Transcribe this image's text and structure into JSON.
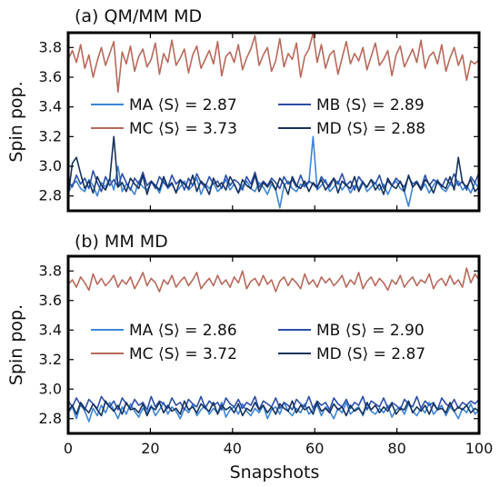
{
  "figure": {
    "xlabel": "Snapshots",
    "ylabel": "Spin pop."
  },
  "colors": {
    "MA": "#3d85d8",
    "MB": "#2c4fa8",
    "MC": "#b8695a",
    "MD": "#16325c"
  },
  "chart_data": [
    {
      "type": "line",
      "title": "(a) QM/MM MD",
      "xlabel": "",
      "ylabel": "Spin pop.",
      "xlim": [
        0,
        100
      ],
      "ylim": [
        2.7,
        3.9
      ],
      "yticks": [
        2.8,
        3.0,
        3.2,
        3.4,
        3.6,
        3.8
      ],
      "xticks": [
        0,
        20,
        40,
        60,
        80,
        100
      ],
      "legend": [
        "MA ⟨S⟩ = 2.87",
        "MB ⟨S⟩ = 2.89",
        "MC ⟨S⟩ = 3.73",
        "MD ⟨S⟩ = 2.88"
      ],
      "legend_placement": "center",
      "series": [
        {
          "name": "MA",
          "mean": 2.87,
          "values": [
            2.82,
            2.88,
            2.9,
            2.85,
            2.83,
            2.91,
            2.87,
            2.8,
            2.89,
            2.86,
            2.92,
            2.84,
            3.0,
            2.83,
            2.88,
            2.85,
            2.81,
            2.9,
            2.86,
            2.84,
            2.89,
            2.87,
            2.82,
            2.91,
            2.85,
            2.88,
            2.83,
            2.86,
            2.9,
            2.84,
            2.87,
            2.92,
            2.81,
            2.88,
            2.85,
            2.89,
            2.83,
            2.86,
            2.91,
            2.84,
            2.88,
            2.82,
            2.87,
            2.9,
            2.85,
            2.83,
            2.89,
            2.86,
            2.81,
            2.88,
            2.84,
            2.72,
            2.87,
            2.9,
            2.85,
            2.83,
            2.88,
            2.86,
            2.89,
            3.2,
            2.84,
            2.87,
            2.91,
            2.83,
            2.86,
            2.9,
            2.84,
            2.88,
            2.82,
            2.87,
            2.85,
            2.9,
            2.83,
            2.86,
            2.89,
            2.84,
            2.88,
            2.81,
            2.87,
            2.9,
            2.85,
            2.83,
            2.73,
            2.86,
            2.89,
            2.84,
            2.88,
            2.82,
            2.87,
            2.91,
            2.85,
            2.83,
            2.88,
            2.86,
            2.9,
            2.84,
            2.87,
            2.82,
            2.89,
            2.85
          ]
        },
        {
          "name": "MB",
          "mean": 2.89,
          "values": [
            2.9,
            2.86,
            2.94,
            2.88,
            2.92,
            2.85,
            2.97,
            2.89,
            2.83,
            2.93,
            2.87,
            2.91,
            2.86,
            2.95,
            2.89,
            2.84,
            2.92,
            2.88,
            2.96,
            2.87,
            2.9,
            2.85,
            2.93,
            2.89,
            2.86,
            2.94,
            2.88,
            2.91,
            2.84,
            2.92,
            2.87,
            2.95,
            2.89,
            2.86,
            2.93,
            2.88,
            2.9,
            2.85,
            2.94,
            2.87,
            2.91,
            2.89,
            2.84,
            2.93,
            2.88,
            2.96,
            2.86,
            2.9,
            2.87,
            2.92,
            2.89,
            2.85,
            2.93,
            2.88,
            2.91,
            2.86,
            2.94,
            2.87,
            2.9,
            2.88,
            2.85,
            2.93,
            2.89,
            2.86,
            2.92,
            2.88,
            2.95,
            2.87,
            2.9,
            2.84,
            2.93,
            2.89,
            2.86,
            2.91,
            2.88,
            2.94,
            2.85,
            2.9,
            2.87,
            2.92,
            2.89,
            2.86,
            2.93,
            2.88,
            2.9,
            2.85,
            2.94,
            2.87,
            2.91,
            2.89,
            2.86,
            2.92,
            2.88,
            2.95,
            2.87,
            2.9,
            2.84,
            2.93,
            2.89,
            2.96
          ]
        },
        {
          "name": "MC",
          "mean": 3.73,
          "values": [
            3.72,
            3.78,
            3.7,
            3.82,
            3.66,
            3.75,
            3.6,
            3.71,
            3.8,
            3.68,
            3.76,
            3.84,
            3.5,
            3.77,
            3.69,
            3.81,
            3.64,
            3.74,
            3.79,
            3.67,
            3.72,
            3.83,
            3.62,
            3.76,
            3.7,
            3.85,
            3.68,
            3.73,
            3.79,
            3.63,
            3.75,
            3.81,
            3.66,
            3.72,
            3.78,
            3.69,
            3.84,
            3.61,
            3.74,
            3.77,
            3.7,
            3.82,
            3.65,
            3.73,
            3.79,
            3.88,
            3.68,
            3.75,
            3.8,
            3.64,
            3.71,
            3.86,
            3.67,
            3.76,
            3.72,
            3.83,
            3.6,
            3.74,
            3.79,
            3.9,
            3.7,
            3.82,
            3.66,
            3.75,
            3.78,
            3.62,
            3.73,
            3.84,
            3.69,
            3.76,
            3.71,
            3.8,
            3.65,
            3.74,
            3.83,
            3.68,
            3.72,
            3.78,
            3.61,
            3.75,
            3.81,
            3.67,
            3.73,
            3.79,
            3.7,
            3.85,
            3.66,
            3.74,
            3.77,
            3.69,
            3.82,
            3.64,
            3.73,
            3.8,
            3.68,
            3.75,
            3.58,
            3.71,
            3.69,
            3.72
          ]
        },
        {
          "name": "MD",
          "mean": 2.88,
          "values": [
            2.8,
            3.02,
            3.06,
            2.95,
            2.85,
            2.9,
            2.82,
            2.93,
            2.87,
            2.84,
            2.91,
            3.2,
            2.86,
            2.89,
            2.83,
            2.92,
            2.88,
            2.85,
            2.94,
            2.81,
            2.9,
            2.87,
            2.84,
            2.93,
            2.86,
            2.89,
            2.82,
            2.91,
            2.88,
            2.85,
            2.94,
            2.83,
            2.9,
            2.87,
            2.81,
            2.92,
            2.86,
            2.89,
            2.84,
            2.93,
            2.88,
            2.82,
            2.91,
            2.87,
            2.85,
            2.94,
            2.83,
            2.89,
            2.86,
            2.9,
            2.84,
            2.92,
            2.88,
            2.81,
            2.93,
            2.87,
            2.85,
            2.9,
            2.83,
            2.89,
            2.86,
            2.91,
            2.84,
            2.88,
            2.92,
            2.82,
            2.9,
            2.87,
            2.85,
            2.93,
            2.83,
            2.89,
            2.86,
            2.91,
            2.84,
            2.88,
            2.81,
            2.92,
            2.87,
            2.85,
            2.9,
            2.83,
            2.94,
            2.86,
            2.89,
            2.84,
            2.91,
            2.88,
            2.82,
            2.9,
            2.87,
            2.85,
            2.93,
            2.84,
            3.06,
            2.89,
            2.86,
            2.91,
            2.83,
            2.86
          ]
        }
      ]
    },
    {
      "type": "line",
      "title": "(b) MM MD",
      "xlabel": "Snapshots",
      "ylabel": "Spin pop.",
      "xlim": [
        0,
        100
      ],
      "ylim": [
        2.7,
        3.9
      ],
      "yticks": [
        2.8,
        3.0,
        3.2,
        3.4,
        3.6,
        3.8
      ],
      "xticks": [
        0,
        20,
        40,
        60,
        80,
        100
      ],
      "legend": [
        "MA ⟨S⟩ = 2.86",
        "MB ⟨S⟩ = 2.90",
        "MC ⟨S⟩ = 3.72",
        "MD ⟨S⟩ = 2.87"
      ],
      "legend_placement": "center",
      "series": [
        {
          "name": "MA",
          "mean": 2.86,
          "values": [
            2.84,
            2.88,
            2.8,
            2.9,
            2.85,
            2.78,
            2.87,
            2.82,
            2.89,
            2.84,
            2.91,
            2.86,
            2.8,
            2.88,
            2.83,
            2.9,
            2.85,
            2.81,
            2.87,
            2.84,
            2.89,
            2.82,
            2.86,
            2.91,
            2.83,
            2.88,
            2.85,
            2.8,
            2.87,
            2.84,
            2.9,
            2.82,
            2.86,
            2.89,
            2.83,
            2.87,
            2.84,
            2.91,
            2.81,
            2.86,
            2.88,
            2.83,
            2.9,
            2.85,
            2.82,
            2.87,
            2.84,
            2.89,
            2.8,
            2.86,
            2.88,
            2.83,
            2.91,
            2.85,
            2.82,
            2.87,
            2.84,
            2.9,
            2.83,
            2.86,
            2.89,
            2.82,
            2.88,
            2.85,
            2.8,
            2.87,
            2.84,
            2.91,
            2.83,
            2.86,
            2.88,
            2.82,
            2.9,
            2.85,
            2.83,
            2.87,
            2.84,
            2.89,
            2.81,
            2.86,
            2.88,
            2.83,
            2.9,
            2.85,
            2.82,
            2.87,
            2.84,
            2.91,
            2.83,
            2.86,
            2.89,
            2.82,
            2.88,
            2.85,
            2.8,
            2.87,
            2.84,
            2.9,
            2.83,
            2.86
          ]
        },
        {
          "name": "MB",
          "mean": 2.9,
          "values": [
            2.92,
            2.88,
            2.94,
            2.89,
            2.86,
            2.93,
            2.9,
            2.87,
            2.95,
            2.91,
            2.88,
            2.92,
            2.86,
            2.94,
            2.9,
            2.87,
            2.93,
            2.89,
            2.91,
            2.86,
            2.95,
            2.88,
            2.92,
            2.9,
            2.87,
            2.94,
            2.89,
            2.91,
            2.86,
            2.93,
            2.9,
            2.88,
            2.95,
            2.87,
            2.92,
            2.89,
            2.91,
            2.86,
            2.94,
            2.9,
            2.88,
            2.93,
            2.87,
            2.91,
            2.89,
            2.95,
            2.86,
            2.92,
            2.9,
            2.88,
            2.94,
            2.87,
            2.91,
            2.89,
            2.86,
            2.93,
            2.9,
            2.88,
            2.95,
            2.87,
            2.92,
            2.89,
            2.91,
            2.86,
            2.94,
            2.9,
            2.88,
            2.93,
            2.87,
            2.91,
            2.89,
            2.95,
            2.86,
            2.92,
            2.9,
            2.88,
            2.94,
            2.87,
            2.91,
            2.89,
            2.86,
            2.93,
            2.9,
            2.88,
            2.95,
            2.87,
            2.92,
            2.89,
            2.91,
            2.86,
            2.94,
            2.9,
            2.88,
            2.93,
            2.87,
            2.91,
            2.89,
            2.92,
            2.9,
            2.93
          ]
        },
        {
          "name": "MC",
          "mean": 3.72,
          "values": [
            3.71,
            3.74,
            3.69,
            3.76,
            3.72,
            3.67,
            3.78,
            3.71,
            3.75,
            3.7,
            3.73,
            3.77,
            3.69,
            3.74,
            3.71,
            3.76,
            3.68,
            3.73,
            3.79,
            3.7,
            3.75,
            3.72,
            3.66,
            3.74,
            3.71,
            3.77,
            3.69,
            3.73,
            3.76,
            3.7,
            3.74,
            3.79,
            3.68,
            3.72,
            3.75,
            3.7,
            3.77,
            3.71,
            3.74,
            3.69,
            3.76,
            3.72,
            3.8,
            3.68,
            3.73,
            3.75,
            3.7,
            3.77,
            3.71,
            3.74,
            3.66,
            3.73,
            3.76,
            3.7,
            3.75,
            3.72,
            3.68,
            3.78,
            3.71,
            3.74,
            3.69,
            3.76,
            3.72,
            3.75,
            3.7,
            3.73,
            3.77,
            3.69,
            3.74,
            3.71,
            3.79,
            3.68,
            3.73,
            3.76,
            3.7,
            3.75,
            3.72,
            3.67,
            3.74,
            3.71,
            3.77,
            3.69,
            3.73,
            3.76,
            3.7,
            3.74,
            3.72,
            3.78,
            3.68,
            3.73,
            3.75,
            3.7,
            3.77,
            3.71,
            3.74,
            3.69,
            3.82,
            3.72,
            3.78,
            3.74
          ]
        },
        {
          "name": "MD",
          "mean": 2.87,
          "values": [
            2.85,
            2.89,
            2.83,
            2.91,
            2.87,
            2.84,
            2.9,
            2.86,
            2.82,
            2.92,
            2.88,
            2.85,
            2.89,
            2.83,
            2.91,
            2.86,
            2.87,
            2.84,
            2.9,
            2.82,
            2.88,
            2.86,
            2.91,
            2.84,
            2.89,
            2.85,
            2.87,
            2.83,
            2.92,
            2.86,
            2.88,
            2.84,
            2.9,
            2.87,
            2.85,
            2.91,
            2.83,
            2.89,
            2.86,
            2.88,
            2.84,
            2.9,
            2.82,
            2.87,
            2.85,
            2.91,
            2.86,
            2.89,
            2.84,
            2.88,
            2.83,
            2.9,
            2.87,
            2.85,
            2.92,
            2.84,
            2.89,
            2.86,
            2.88,
            2.83,
            2.91,
            2.85,
            2.87,
            2.84,
            2.9,
            2.86,
            2.88,
            2.82,
            2.89,
            2.85,
            2.87,
            2.83,
            2.91,
            2.86,
            2.89,
            2.84,
            2.88,
            2.85,
            2.9,
            2.83,
            2.87,
            2.86,
            2.92,
            2.84,
            2.88,
            2.85,
            2.89,
            2.83,
            2.9,
            2.86,
            2.87,
            2.84,
            2.91,
            2.85,
            2.88,
            2.86,
            2.89,
            2.84,
            2.87,
            2.85
          ]
        }
      ]
    }
  ]
}
